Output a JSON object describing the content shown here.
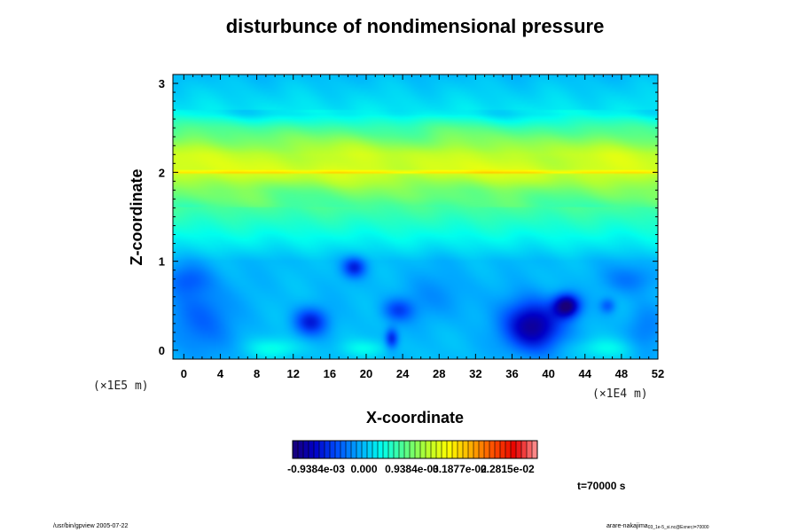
{
  "figure": {
    "title": "disturbunce of nondimensional pressure",
    "footer_left": "/usr/bin/gpview 2005-07-22",
    "footer_right": "arare-nakajima",
    "footer_right_sub": "03_1e-5_si.nc@Exner,t=70000",
    "time_label": "t=70000 s"
  },
  "chart_data": {
    "type": "heatmap",
    "title": "disturbunce of nondimensional pressure",
    "xlabel": "X-coordinate",
    "ylabel": "Z-coordinate",
    "x_scale_label": "(×1E4 m)",
    "y_scale_label": "(×1E5 m)",
    "xlim": [
      -1.2,
      52
    ],
    "ylim": [
      -0.1,
      3.1
    ],
    "x_ticks": [
      "0",
      "4",
      "8",
      "12",
      "16",
      "20",
      "24",
      "28",
      "32",
      "36",
      "40",
      "44",
      "48",
      "52"
    ],
    "y_ticks": [
      "0",
      "1",
      "2",
      "3"
    ],
    "colorbar": {
      "colors": [
        "#1a0078",
        "#0000c8",
        "#0050ff",
        "#00aaff",
        "#00ffee",
        "#50ff90",
        "#b4ff30",
        "#ffff00",
        "#ffb000",
        "#ff5000",
        "#e80000",
        "#ff9a9a"
      ],
      "labels": [
        "-0.9384e-03",
        "0.000",
        "0.9384e-03",
        "0.1877e-02",
        "0.2815e-02"
      ],
      "label_positions": [
        -0.0009384,
        0,
        0.0009384,
        0.001877,
        0.002815
      ],
      "range": [
        -0.0014,
        0.0034
      ]
    },
    "background_profile": [
      {
        "z": -0.1,
        "v": 0.0
      },
      {
        "z": 1.0,
        "v": 0.0
      },
      {
        "z": 1.2,
        "v": 0.00025
      },
      {
        "z": 1.5,
        "v": 0.0006
      },
      {
        "z": 1.8,
        "v": 0.00095
      },
      {
        "z": 1.98,
        "v": 0.00135
      },
      {
        "z": 2.0,
        "v": 0.0019
      },
      {
        "z": 2.03,
        "v": 0.0014
      },
      {
        "z": 2.2,
        "v": 0.0013
      },
      {
        "z": 2.35,
        "v": 0.001
      },
      {
        "z": 2.5,
        "v": 0.0007
      },
      {
        "z": 2.65,
        "v": 0.00025
      },
      {
        "z": 3.1,
        "v": 0.0
      }
    ],
    "anomalies": [
      {
        "x": 38.3,
        "z": 0.27,
        "amp": -0.00125,
        "sx": 2.2,
        "sz": 0.2
      },
      {
        "x": 42.0,
        "z": 0.5,
        "amp": -0.00135,
        "sx": 1.0,
        "sz": 0.09
      },
      {
        "x": 13.9,
        "z": 0.32,
        "amp": -0.0008,
        "sx": 1.3,
        "sz": 0.11
      },
      {
        "x": 18.7,
        "z": 0.93,
        "amp": -0.00075,
        "sx": 0.9,
        "sz": 0.08
      },
      {
        "x": 22.8,
        "z": 0.13,
        "amp": -0.00075,
        "sx": 0.5,
        "sz": 0.08
      },
      {
        "x": 23.5,
        "z": 0.45,
        "amp": -0.00055,
        "sx": 1.2,
        "sz": 0.09
      },
      {
        "x": 1.8,
        "z": 0.35,
        "amp": -0.00045,
        "sx": 2.5,
        "sz": 0.3
      },
      {
        "x": 0.5,
        "z": 0.8,
        "amp": -0.00035,
        "sx": 1.8,
        "sz": 0.12
      },
      {
        "x": 49.0,
        "z": 0.8,
        "amp": -0.00035,
        "sx": 2.0,
        "sz": 0.12
      },
      {
        "x": 50.5,
        "z": 0.25,
        "amp": -0.0003,
        "sx": 1.5,
        "sz": 0.2
      },
      {
        "x": 46.5,
        "z": 0.5,
        "amp": -0.00045,
        "sx": 0.6,
        "sz": 0.06
      },
      {
        "x": 10.0,
        "z": 0.02,
        "amp": 0.00035,
        "sx": 2.2,
        "sz": 0.08
      },
      {
        "x": 20.0,
        "z": 0.02,
        "amp": 0.0003,
        "sx": 2.0,
        "sz": 0.07
      },
      {
        "x": 46.0,
        "z": 0.02,
        "amp": 0.0003,
        "sx": 2.5,
        "sz": 0.08
      },
      {
        "x": 28.0,
        "z": 0.6,
        "amp": -0.0002,
        "sx": 3.0,
        "sz": 0.2
      }
    ]
  }
}
